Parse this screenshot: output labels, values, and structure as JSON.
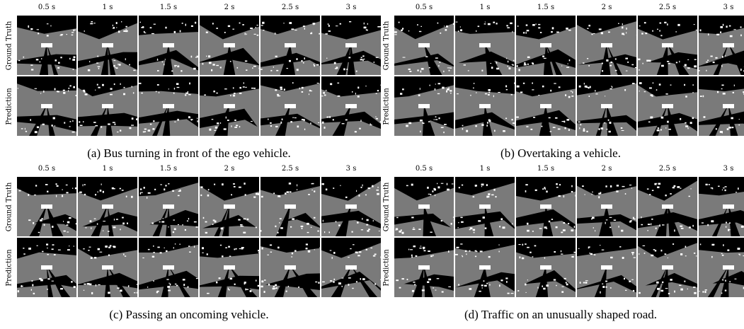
{
  "time_labels": [
    "0.5 s",
    "1 s",
    "1.5 s",
    "2 s",
    "2.5 s",
    "3 s"
  ],
  "row_labels": [
    "Ground Truth",
    "Prediction"
  ],
  "panels": [
    {
      "id": "a",
      "caption": "(a) Bus turning in front of the ego vehicle."
    },
    {
      "id": "b",
      "caption": "(b) Overtaking a vehicle."
    },
    {
      "id": "c",
      "caption": "(c) Passing an oncoming vehicle."
    },
    {
      "id": "d",
      "caption": "(d) Traffic on an unusually shaped road."
    }
  ],
  "colors": {
    "free": "#7a7a7a",
    "occupied": "#ffffff",
    "unknown": "#000000"
  }
}
